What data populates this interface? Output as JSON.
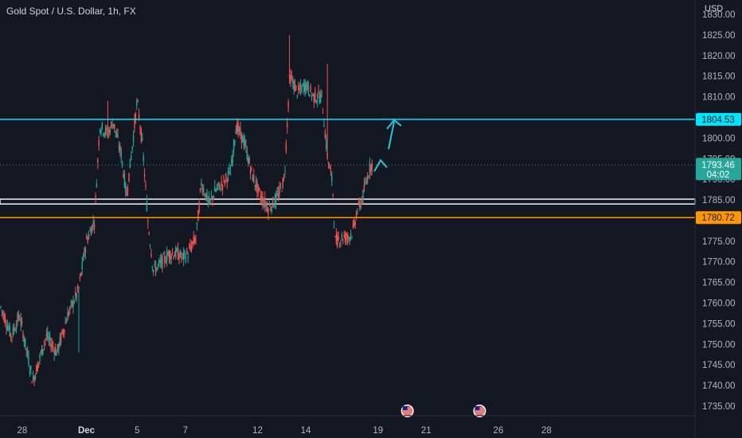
{
  "chart_title": "Gold Spot / U.S. Dollar, 1h, FX",
  "currency": "USD",
  "colors": {
    "background": "#131722",
    "up": "#26a69a",
    "down": "#ef5350",
    "grid": "#1e222d",
    "resistance": "#00e5ff",
    "support": "#ff9800",
    "zone": "#e0e3eb",
    "text": "#b2b5be",
    "arrow": "#26c6da"
  },
  "chart_data": {
    "type": "candlestick",
    "title": "Gold Spot / U.S. Dollar, 1h, FX",
    "symbol": "XAUUSD",
    "interval": "1h",
    "ylim": [
      1731,
      1831
    ],
    "y_ticks": [
      "1830.00",
      "1825.00",
      "1820.00",
      "1815.00",
      "1810.00",
      "1805.00",
      "1800.00",
      "1795.00",
      "1790.00",
      "1785.00",
      "1780.00",
      "1775.00",
      "1770.00",
      "1765.00",
      "1760.00",
      "1755.00",
      "1750.00",
      "1745.00",
      "1740.00",
      "1735.00"
    ],
    "x_ticks": [
      {
        "label": "28",
        "bar": 8
      },
      {
        "label": "Dec",
        "bar": 32
      },
      {
        "label": "5",
        "bar": 51
      },
      {
        "label": "7",
        "bar": 69
      },
      {
        "label": "12",
        "bar": 96
      },
      {
        "label": "14",
        "bar": 114
      },
      {
        "label": "19",
        "bar": 141
      },
      {
        "label": "21",
        "bar": 159
      },
      {
        "label": "26",
        "bar": 186
      },
      {
        "label": "28",
        "bar": 204
      }
    ],
    "price_path": [
      [
        0,
        1759
      ],
      [
        4,
        1752
      ],
      [
        7,
        1757
      ],
      [
        12,
        1741
      ],
      [
        17,
        1752
      ],
      [
        21,
        1748
      ],
      [
        25,
        1757
      ],
      [
        29,
        1763
      ],
      [
        32,
        1775
      ],
      [
        35,
        1780
      ],
      [
        37,
        1803
      ],
      [
        40,
        1801
      ],
      [
        42,
        1804
      ],
      [
        45,
        1796
      ],
      [
        47,
        1786
      ],
      [
        49,
        1797
      ],
      [
        51,
        1809
      ],
      [
        53,
        1798
      ],
      [
        55,
        1780
      ],
      [
        57,
        1768
      ],
      [
        59,
        1769
      ],
      [
        63,
        1772
      ],
      [
        66,
        1772
      ],
      [
        68,
        1771
      ],
      [
        70,
        1772
      ],
      [
        73,
        1776
      ],
      [
        75,
        1789
      ],
      [
        78,
        1784
      ],
      [
        80,
        1787
      ],
      [
        83,
        1789
      ],
      [
        86,
        1792
      ],
      [
        88,
        1803
      ],
      [
        91,
        1799
      ],
      [
        94,
        1791
      ],
      [
        97,
        1786
      ],
      [
        100,
        1783
      ],
      [
        103,
        1785
      ],
      [
        106,
        1790
      ],
      [
        108,
        1815
      ],
      [
        111,
        1811
      ],
      [
        114,
        1813
      ],
      [
        117,
        1810
      ],
      [
        120,
        1810
      ],
      [
        122,
        1796
      ],
      [
        124,
        1789
      ],
      [
        125,
        1775
      ],
      [
        128,
        1776
      ],
      [
        130,
        1776
      ],
      [
        132,
        1778
      ],
      [
        133,
        1782
      ],
      [
        135,
        1785
      ],
      [
        138,
        1793
      ],
      [
        139,
        1794
      ]
    ],
    "last_price": 1793.46,
    "last_price_label": "1793.46",
    "countdown": "04:02",
    "levels": [
      {
        "name": "resistance",
        "price": 1804.53,
        "label": "1804.53"
      },
      {
        "name": "support",
        "price": 1780.72,
        "label": "1780.72"
      }
    ],
    "zone": {
      "low": 1784.3,
      "high": 1784.9
    },
    "events": [
      {
        "bar": 152
      },
      {
        "bar": 179
      }
    ]
  }
}
